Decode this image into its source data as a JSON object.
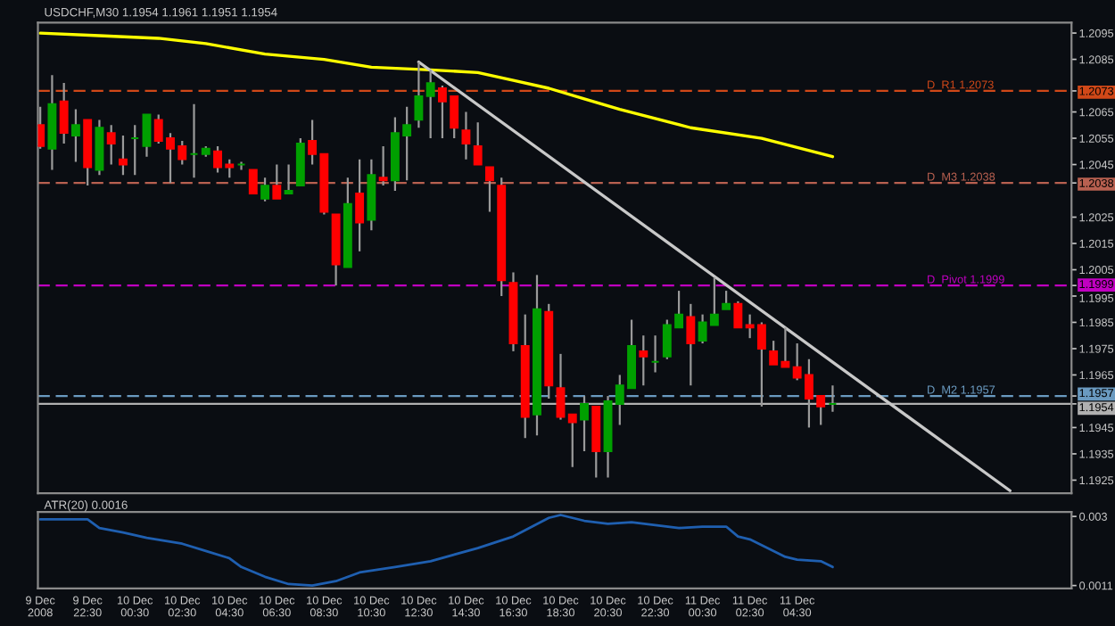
{
  "chart_data": [
    {
      "type": "candlestick",
      "title": "USDCHF,M30 1.1954 1.1961 1.1951 1.1954",
      "tick_labels": "y",
      "xlim": [
        "2008-12-09T20:24",
        "2008-12-11T16:06"
      ],
      "ylim": [
        1.192,
        1.2099
      ],
      "yticks": [
        1.2095,
        1.2085,
        1.2073,
        1.2065,
        1.2055,
        1.2045,
        1.2038,
        1.2025,
        1.2015,
        1.2005,
        1.1999,
        1.1995,
        1.1985,
        1.1975,
        1.1965,
        1.1957,
        1.1954,
        1.1945,
        1.1935,
        1.1925
      ],
      "x": [
        "2008-12-09T20:30",
        "2008-12-09T21:00",
        "2008-12-09T21:30",
        "2008-12-09T22:00",
        "2008-12-09T22:30",
        "2008-12-09T23:00",
        "2008-12-09T23:30",
        "2008-12-10T00:00",
        "2008-12-10T00:30",
        "2008-12-10T01:00",
        "2008-12-10T01:30",
        "2008-12-10T02:00",
        "2008-12-10T02:30",
        "2008-12-10T03:00",
        "2008-12-10T03:30",
        "2008-12-10T04:00",
        "2008-12-10T04:30",
        "2008-12-10T05:00",
        "2008-12-10T05:30",
        "2008-12-10T06:00",
        "2008-12-10T06:30",
        "2008-12-10T07:00",
        "2008-12-10T07:30",
        "2008-12-10T08:00",
        "2008-12-10T08:30",
        "2008-12-10T09:00",
        "2008-12-10T09:30",
        "2008-12-10T10:00",
        "2008-12-10T10:30",
        "2008-12-10T11:00",
        "2008-12-10T11:30",
        "2008-12-10T12:00",
        "2008-12-10T12:30",
        "2008-12-10T13:00",
        "2008-12-10T13:30",
        "2008-12-10T14:00",
        "2008-12-10T14:30",
        "2008-12-10T15:00",
        "2008-12-10T15:30",
        "2008-12-10T16:00",
        "2008-12-10T16:30",
        "2008-12-10T17:00",
        "2008-12-10T17:30",
        "2008-12-10T18:00",
        "2008-12-10T18:30",
        "2008-12-10T19:00",
        "2008-12-10T19:30",
        "2008-12-10T20:00",
        "2008-12-10T20:30",
        "2008-12-10T21:00",
        "2008-12-10T21:30",
        "2008-12-10T22:00",
        "2008-12-10T22:30",
        "2008-12-10T23:00",
        "2008-12-10T23:30",
        "2008-12-11T00:00",
        "2008-12-11T00:30",
        "2008-12-11T01:00",
        "2008-12-11T01:30",
        "2008-12-11T02:00",
        "2008-12-11T02:30",
        "2008-12-11T03:00",
        "2008-12-11T03:30",
        "2008-12-11T04:00",
        "2008-12-11T04:30",
        "2008-12-11T05:00",
        "2008-12-11T05:30",
        "2008-12-11T06:00"
      ],
      "ohlc": [
        [
          1.206,
          1.2067,
          1.2051,
          1.2052
        ],
        [
          1.2051,
          1.2079,
          1.2043,
          1.2068
        ],
        [
          1.2069,
          1.2076,
          1.2053,
          1.2057
        ],
        [
          1.2056,
          1.2066,
          1.2046,
          1.206
        ],
        [
          1.2062,
          1.2062,
          1.2037,
          1.2044
        ],
        [
          1.2043,
          1.2062,
          1.2041,
          1.2059
        ],
        [
          1.2057,
          1.206,
          1.2045,
          1.2053
        ],
        [
          1.2047,
          1.2056,
          1.2041,
          1.2045
        ],
        [
          1.2055,
          1.206,
          1.2041,
          1.2055
        ],
        [
          1.2052,
          1.2064,
          1.2048,
          1.2064
        ],
        [
          1.2062,
          1.2064,
          1.2053,
          1.2054
        ],
        [
          1.2055,
          1.2057,
          1.2038,
          1.2051
        ],
        [
          1.2052,
          1.2054,
          1.2045,
          1.2047
        ],
        [
          1.2049,
          1.2068,
          1.204,
          1.2049
        ],
        [
          1.2049,
          1.2052,
          1.2048,
          1.2051
        ],
        [
          1.205,
          1.2052,
          1.2042,
          1.2044
        ],
        [
          1.2045,
          1.2047,
          1.204,
          1.2044
        ],
        [
          1.2045,
          1.2046,
          1.2043,
          1.2045
        ],
        [
          1.2043,
          1.2043,
          1.2034,
          1.2034
        ],
        [
          1.2032,
          1.204,
          1.2031,
          1.2037
        ],
        [
          1.2037,
          1.2045,
          1.2032,
          1.2032
        ],
        [
          1.2034,
          1.2045,
          1.2034,
          1.2035
        ],
        [
          1.2037,
          1.2055,
          1.2037,
          1.2053
        ],
        [
          1.2054,
          1.2062,
          1.2045,
          1.2049
        ],
        [
          1.2049,
          1.2049,
          1.2026,
          1.2027
        ],
        [
          1.2026,
          1.2026,
          1.1999,
          1.2007
        ],
        [
          1.2006,
          1.204,
          1.2006,
          1.203
        ],
        [
          1.2034,
          1.2047,
          1.2012,
          1.2023
        ],
        [
          1.2024,
          1.2047,
          1.202,
          1.2041
        ],
        [
          1.204,
          1.2052,
          1.2037,
          1.2039
        ],
        [
          1.2039,
          1.2063,
          1.2035,
          1.2057
        ],
        [
          1.2056,
          1.2067,
          1.2039,
          1.206
        ],
        [
          1.2062,
          1.2084,
          1.2059,
          1.2071
        ],
        [
          1.2071,
          1.2081,
          1.2055,
          1.2076
        ],
        [
          1.2074,
          1.2075,
          1.2055,
          1.2069
        ],
        [
          1.2071,
          1.2071,
          1.2055,
          1.2059
        ],
        [
          1.2058,
          1.2065,
          1.2047,
          1.2053
        ],
        [
          1.2052,
          1.2061,
          1.2045,
          1.2045
        ],
        [
          1.2044,
          1.2044,
          1.2027,
          1.2039
        ],
        [
          1.2037,
          1.204,
          1.1995,
          1.2001
        ],
        [
          1.2,
          1.2004,
          1.1974,
          1.1977
        ],
        [
          1.1976,
          1.1988,
          1.1941,
          1.1949
        ],
        [
          1.195,
          1.2003,
          1.1942,
          1.199
        ],
        [
          1.1989,
          1.1992,
          1.1956,
          1.1961
        ],
        [
          1.196,
          1.1973,
          1.1948,
          1.1949
        ],
        [
          1.195,
          1.195,
          1.193,
          1.1947
        ],
        [
          1.1948,
          1.1957,
          1.1936,
          1.1954
        ],
        [
          1.1953,
          1.1953,
          1.1926,
          1.1936
        ],
        [
          1.1936,
          1.1957,
          1.1926,
          1.1955
        ],
        [
          1.1954,
          1.1965,
          1.1946,
          1.1961
        ],
        [
          1.196,
          1.1986,
          1.196,
          1.1976
        ],
        [
          1.1974,
          1.198,
          1.1961,
          1.1972
        ],
        [
          1.197,
          1.198,
          1.1966,
          1.197
        ],
        [
          1.1972,
          1.1986,
          1.1971,
          1.1984
        ],
        [
          1.1983,
          1.1997,
          1.1983,
          1.1988
        ],
        [
          1.1987,
          1.1992,
          1.1961,
          1.1977
        ],
        [
          1.1978,
          1.1988,
          1.1977,
          1.1985
        ],
        [
          1.1984,
          1.2002,
          1.1984,
          1.1988
        ],
        [
          1.199,
          1.1997,
          1.199,
          1.1992
        ],
        [
          1.1992,
          1.1993,
          1.1983,
          1.1983
        ],
        [
          1.1984,
          1.1988,
          1.1979,
          1.1983
        ],
        [
          1.1984,
          1.1985,
          1.1953,
          1.1975
        ],
        [
          1.1974,
          1.1978,
          1.1969,
          1.1969
        ],
        [
          1.197,
          1.1983,
          1.1968,
          1.1968
        ],
        [
          1.1968,
          1.1977,
          1.1963,
          1.1964
        ],
        [
          1.1965,
          1.1971,
          1.1945,
          1.1956
        ],
        [
          1.1957,
          1.1957,
          1.1946,
          1.1953
        ],
        [
          1.1954,
          1.1961,
          1.1951,
          1.1954
        ]
      ],
      "colors": [
        "#ff0000",
        "#00a000",
        "#ff0000",
        "#00a000",
        "#ff0000",
        "#00a000",
        "#ff0000",
        "#ff0000",
        "#00a000",
        "#00a000",
        "#ff0000",
        "#ff0000",
        "#ff0000",
        "#00a000",
        "#00a000",
        "#ff0000",
        "#ff0000",
        "#00a000",
        "#ff0000",
        "#00a000",
        "#ff0000",
        "#00a000",
        "#00a000",
        "#ff0000",
        "#ff0000",
        "#ff0000",
        "#00a000",
        "#ff0000",
        "#00a000",
        "#ff0000",
        "#00a000",
        "#00a000",
        "#00a000",
        "#00a000",
        "#ff0000",
        "#ff0000",
        "#ff0000",
        "#ff0000",
        "#ff0000",
        "#ff0000",
        "#ff0000",
        "#ff0000",
        "#00a000",
        "#ff0000",
        "#ff0000",
        "#ff0000",
        "#00a000",
        "#ff0000",
        "#00a000",
        "#00a000",
        "#00a000",
        "#ff0000",
        "#00a000",
        "#00a000",
        "#00a000",
        "#ff0000",
        "#00a000",
        "#00a000",
        "#00a000",
        "#ff0000",
        "#ff0000",
        "#ff0000",
        "#ff0000",
        "#ff0000",
        "#ff0000",
        "#ff0000",
        "#ff0000",
        "#00a000"
      ],
      "series": [
        {
          "type": "line",
          "color": "#ffff00",
          "x": [
            "2008-12-09T20:30",
            "2008-12-09T23:00",
            "2008-12-10T01:30",
            "2008-12-10T03:30",
            "2008-12-10T06:00",
            "2008-12-10T08:30",
            "2008-12-10T10:30",
            "2008-12-10T13:00",
            "2008-12-10T15:00",
            "2008-12-10T16:30",
            "2008-12-10T18:00",
            "2008-12-10T19:30",
            "2008-12-10T21:00",
            "2008-12-11T00:00",
            "2008-12-11T03:00",
            "2008-12-11T06:00"
          ],
          "values": [
            1.2095,
            1.2094,
            1.2093,
            1.2091,
            1.2087,
            1.2085,
            1.2082,
            1.2081,
            1.208,
            1.2077,
            1.2074,
            1.207,
            1.2066,
            1.2059,
            1.2055,
            1.2048
          ]
        },
        {
          "type": "line",
          "color": "#c8c8c8",
          "x": [
            "2008-12-10T12:30",
            "2008-12-11T13:30"
          ],
          "values": [
            1.2084,
            1.1921
          ]
        }
      ],
      "ref_lines": [
        {
          "axis": "y",
          "value": 1.2073,
          "label": "D_R1 1.2073",
          "color": "#d04818",
          "line_style": "dashed"
        },
        {
          "axis": "y",
          "value": 1.2038,
          "label": "D_M3 1.2038",
          "color": "#b86050",
          "line_style": "dashed"
        },
        {
          "axis": "y",
          "value": 1.1999,
          "label": "D_Pivot 1.1999",
          "color": "#c000c0",
          "line_style": "dashed"
        },
        {
          "axis": "y",
          "value": 1.1957,
          "label": "D_M2 1.1957",
          "color": "#6a9ac0",
          "line_style": "dashed"
        },
        {
          "axis": "y",
          "value": 1.1954,
          "label": null,
          "color": "#b0b0b0",
          "line_style": "solid"
        }
      ]
    },
    {
      "type": "line",
      "title": "ATR(20) 0.0016",
      "color": "#1f5fb0",
      "xlim": [
        "2008-12-09T20:24",
        "2008-12-11T16:06"
      ],
      "ylim": [
        0.00102,
        0.00312
      ],
      "yticks": [
        0.003,
        0.0011
      ],
      "xticks": [
        {
          "value": "2008-12-09T20:30",
          "label": "9 Dec 2008"
        },
        {
          "value": "2008-12-09T22:30",
          "label": "9 Dec 22:30"
        },
        {
          "value": "2008-12-10T00:30",
          "label": "10 Dec 00:30"
        },
        {
          "value": "2008-12-10T02:30",
          "label": "10 Dec 02:30"
        },
        {
          "value": "2008-12-10T04:30",
          "label": "10 Dec 04:30"
        },
        {
          "value": "2008-12-10T06:30",
          "label": "10 Dec 06:30"
        },
        {
          "value": "2008-12-10T08:30",
          "label": "10 Dec 08:30"
        },
        {
          "value": "2008-12-10T10:30",
          "label": "10 Dec 10:30"
        },
        {
          "value": "2008-12-10T12:30",
          "label": "10 Dec 12:30"
        },
        {
          "value": "2008-12-10T14:30",
          "label": "10 Dec 14:30"
        },
        {
          "value": "2008-12-10T16:30",
          "label": "10 Dec 16:30"
        },
        {
          "value": "2008-12-10T18:30",
          "label": "10 Dec 18:30"
        },
        {
          "value": "2008-12-10T20:30",
          "label": "10 Dec 20:30"
        },
        {
          "value": "2008-12-10T22:30",
          "label": "10 Dec 22:30"
        },
        {
          "value": "2008-12-11T00:30",
          "label": "11 Dec 00:30"
        },
        {
          "value": "2008-12-11T02:30",
          "label": "11 Dec 02:30"
        },
        {
          "value": "2008-12-11T04:30",
          "label": "11 Dec 04:30"
        }
      ],
      "x": [
        "2008-12-09T20:30",
        "2008-12-09T22:30",
        "2008-12-09T23:00",
        "2008-12-10T00:00",
        "2008-12-10T01:00",
        "2008-12-10T02:30",
        "2008-12-10T03:30",
        "2008-12-10T04:30",
        "2008-12-10T05:00",
        "2008-12-10T06:00",
        "2008-12-10T07:00",
        "2008-12-10T08:00",
        "2008-12-10T09:00",
        "2008-12-10T10:00",
        "2008-12-10T11:30",
        "2008-12-10T13:00",
        "2008-12-10T15:00",
        "2008-12-10T16:30",
        "2008-12-10T18:00",
        "2008-12-10T18:30",
        "2008-12-10T19:30",
        "2008-12-10T20:30",
        "2008-12-10T21:30",
        "2008-12-10T22:30",
        "2008-12-10T23:30",
        "2008-12-11T00:30",
        "2008-12-11T01:30",
        "2008-12-11T02:00",
        "2008-12-11T02:30",
        "2008-12-11T04:00",
        "2008-12-11T04:30",
        "2008-12-11T05:30",
        "2008-12-11T06:00"
      ],
      "values": [
        0.00292,
        0.00292,
        0.00268,
        0.00256,
        0.00241,
        0.00225,
        0.00205,
        0.00185,
        0.00161,
        0.00134,
        0.00114,
        0.0011,
        0.00122,
        0.00146,
        0.00161,
        0.00177,
        0.00213,
        0.00245,
        0.00296,
        0.00304,
        0.00288,
        0.0028,
        0.00284,
        0.00276,
        0.00268,
        0.00272,
        0.00272,
        0.00245,
        0.00237,
        0.00189,
        0.00181,
        0.00177,
        0.00161
      ]
    }
  ]
}
